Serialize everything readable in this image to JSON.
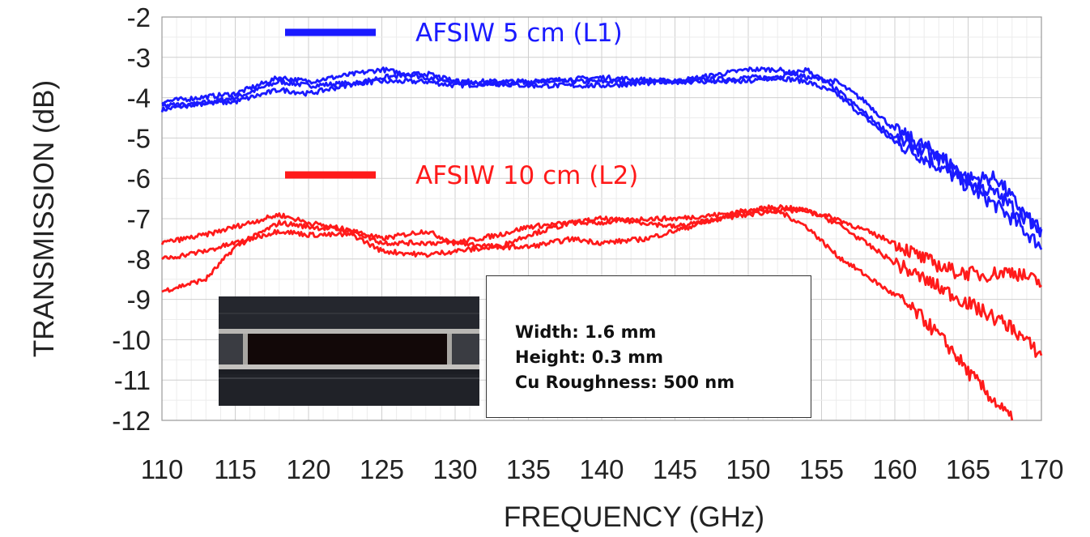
{
  "chart_data": {
    "type": "line",
    "xlabel": "FREQUENCY (GHz)",
    "ylabel": "TRANSMISSION (dB)",
    "xlim": [
      110,
      170
    ],
    "ylim": [
      -12,
      -2
    ],
    "x_ticks": [
      "110",
      "115",
      "120",
      "125",
      "130",
      "135",
      "140",
      "145",
      "150",
      "155",
      "160",
      "165",
      "170"
    ],
    "y_ticks": [
      "-2",
      "-3",
      "-4",
      "-5",
      "-6",
      "-7",
      "-8",
      "-9",
      "-10",
      "-11",
      "-12"
    ],
    "grid": true,
    "legend": [
      {
        "label": "AFSIW 5 cm (L1)",
        "color": "#1a1aff"
      },
      {
        "label": "AFSIW 10 cm (L2)",
        "color": "#ff1a1a"
      }
    ],
    "series": [
      {
        "name": "AFSIW 5 cm (L1)",
        "color": "#1a1aff",
        "x": [
          110,
          115,
          118,
          120,
          125,
          128,
          130,
          135,
          140,
          145,
          150,
          152,
          154,
          156,
          158,
          160,
          163,
          165,
          167,
          168,
          170
        ],
        "y": [
          -4.3,
          -4.0,
          -3.6,
          -3.7,
          -3.6,
          -3.6,
          -3.7,
          -3.6,
          -3.6,
          -3.6,
          -3.5,
          -3.5,
          -3.6,
          -3.9,
          -4.5,
          -5.1,
          -5.7,
          -6.2,
          -6.7,
          -7.0,
          -7.7
        ]
      },
      {
        "name": "AFSIW 5 cm (L1)",
        "color": "#1a1aff",
        "x": [
          110,
          115,
          118,
          120,
          125,
          128,
          130,
          135,
          140,
          145,
          150,
          152,
          154,
          156,
          158,
          160,
          163,
          165,
          167,
          168,
          170
        ],
        "y": [
          -4.1,
          -3.9,
          -3.5,
          -3.6,
          -3.3,
          -3.5,
          -3.6,
          -3.6,
          -3.5,
          -3.6,
          -3.3,
          -3.3,
          -3.5,
          -3.6,
          -4.1,
          -4.8,
          -5.4,
          -6.0,
          -6.0,
          -6.5,
          -7.4
        ]
      },
      {
        "name": "AFSIW 5 cm (L1)",
        "color": "#1a1aff",
        "x": [
          110,
          115,
          118,
          120,
          125,
          128,
          130,
          135,
          140,
          145,
          150,
          152,
          154,
          156,
          158,
          160,
          163,
          165,
          167,
          168,
          170
        ],
        "y": [
          -4.2,
          -4.1,
          -3.8,
          -3.9,
          -3.5,
          -3.4,
          -3.6,
          -3.7,
          -3.7,
          -3.6,
          -3.6,
          -3.5,
          -3.3,
          -3.8,
          -4.4,
          -5.0,
          -5.5,
          -6.1,
          -6.4,
          -6.7,
          -7.3
        ]
      },
      {
        "name": "AFSIW 10 cm (L2)",
        "color": "#ff1a1a",
        "x": [
          110,
          113,
          115,
          118,
          120,
          123,
          125,
          128,
          130,
          133,
          135,
          138,
          140,
          143,
          145,
          148,
          150,
          152,
          154,
          156,
          158,
          160,
          162,
          164,
          165,
          166,
          167,
          168
        ],
        "y": [
          -8.8,
          -8.5,
          -7.7,
          -7.1,
          -7.2,
          -7.3,
          -7.5,
          -7.3,
          -7.6,
          -7.4,
          -7.2,
          -7.1,
          -7.1,
          -7.0,
          -7.0,
          -6.9,
          -6.8,
          -6.8,
          -7.2,
          -7.9,
          -8.4,
          -8.9,
          -9.5,
          -10.3,
          -10.8,
          -11.2,
          -11.6,
          -12.0
        ]
      },
      {
        "name": "AFSIW 10 cm (L2)",
        "color": "#ff1a1a",
        "x": [
          110,
          113,
          115,
          118,
          120,
          123,
          125,
          128,
          130,
          133,
          135,
          138,
          140,
          143,
          145,
          148,
          150,
          152,
          154,
          156,
          158,
          160,
          162,
          164,
          166,
          168,
          170
        ],
        "y": [
          -7.6,
          -7.4,
          -7.2,
          -6.9,
          -7.1,
          -7.3,
          -7.6,
          -7.6,
          -7.6,
          -7.7,
          -7.7,
          -7.5,
          -7.6,
          -7.5,
          -7.3,
          -7.0,
          -6.8,
          -6.7,
          -6.8,
          -7.0,
          -7.3,
          -7.6,
          -8.0,
          -8.3,
          -8.4,
          -8.3,
          -8.6
        ]
      },
      {
        "name": "AFSIW 10 cm (L2)",
        "color": "#ff1a1a",
        "x": [
          110,
          113,
          115,
          118,
          120,
          123,
          125,
          128,
          130,
          133,
          135,
          138,
          140,
          143,
          145,
          148,
          150,
          152,
          154,
          156,
          158,
          160,
          162,
          164,
          166,
          168,
          170
        ],
        "y": [
          -8.0,
          -7.8,
          -7.6,
          -7.3,
          -7.4,
          -7.4,
          -7.8,
          -7.9,
          -7.8,
          -7.7,
          -7.4,
          -7.1,
          -7.0,
          -7.1,
          -7.2,
          -7.0,
          -6.9,
          -6.8,
          -6.8,
          -7.1,
          -7.6,
          -8.1,
          -8.5,
          -8.9,
          -9.3,
          -9.7,
          -10.4
        ]
      }
    ]
  },
  "inset": {
    "width_line": "Width: 1.6 mm",
    "height_line": "Height: 0.3 mm",
    "roughness_line": "Cu Roughness: 500 nm"
  }
}
